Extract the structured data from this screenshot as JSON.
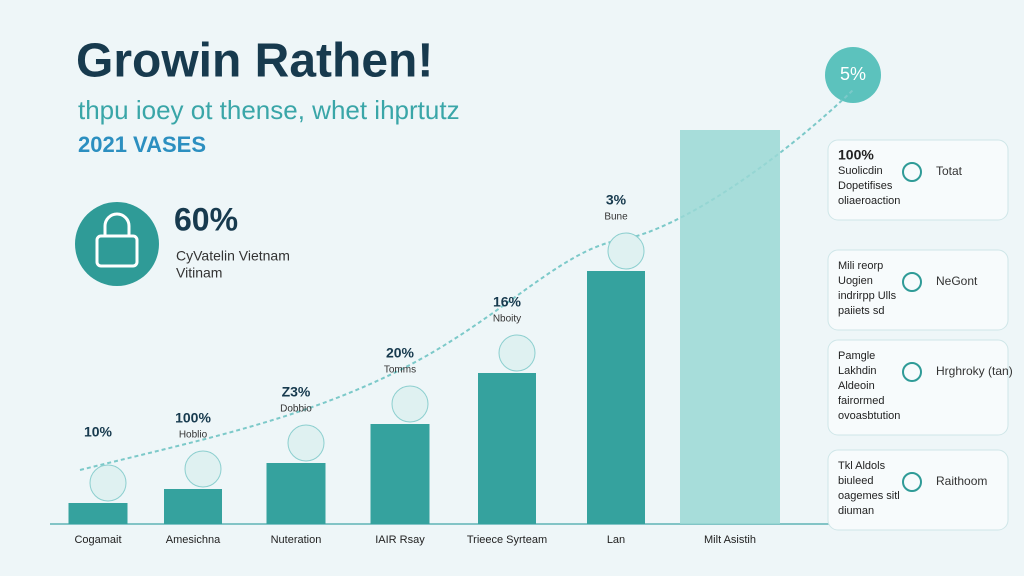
{
  "header": {
    "title": "Growin Rathen!",
    "subtitle": "thpu ioey ot thense, whet ihprtutz",
    "year": "2021 VASES"
  },
  "stat": {
    "value": "60%",
    "lines": [
      "CyVatelin Vietnam",
      "Vitinam"
    ]
  },
  "badge": "5%",
  "chart_data": {
    "type": "bar",
    "categories": [
      "Cogamait",
      "Amesichna",
      "Nuteration",
      "IAIR Rsay",
      "Trieece Syrteam",
      "Lan",
      "Milt Asistih"
    ],
    "values": [
      21,
      35,
      61,
      100,
      151,
      253,
      394
    ],
    "color": "#35a29e",
    "ylim": [
      0,
      400
    ],
    "annotations": [
      {
        "label": "10%"
      },
      {
        "label": "100%",
        "sub": "Hoblio"
      },
      {
        "label": "Z3%",
        "sub": "Dobbio"
      },
      {
        "label": "20%",
        "sub": "Tomms"
      },
      {
        "label": "16%",
        "sub": "Nboity"
      },
      {
        "label": "3%",
        "sub": "Bune"
      }
    ]
  },
  "panels": [
    {
      "lines": [
        "100%",
        "Suolicdin",
        "Dopetifises",
        "oliaeroaction"
      ],
      "side": "Totat"
    },
    {
      "lines": [
        "Mili reorp",
        "Uogien",
        "indrirpp Ulls",
        "paiiets sd"
      ],
      "side": "NeGont"
    },
    {
      "lines": [
        "Pamgle",
        "Lakhdin",
        "Aldeoin",
        "fairormed",
        "ovoasbtution"
      ],
      "side": "Hrghroky (tan)"
    },
    {
      "lines": [
        "Tkl Aldols",
        "biuleed",
        "oagemes sitl",
        "diuman"
      ],
      "side": "Raithoom"
    }
  ]
}
